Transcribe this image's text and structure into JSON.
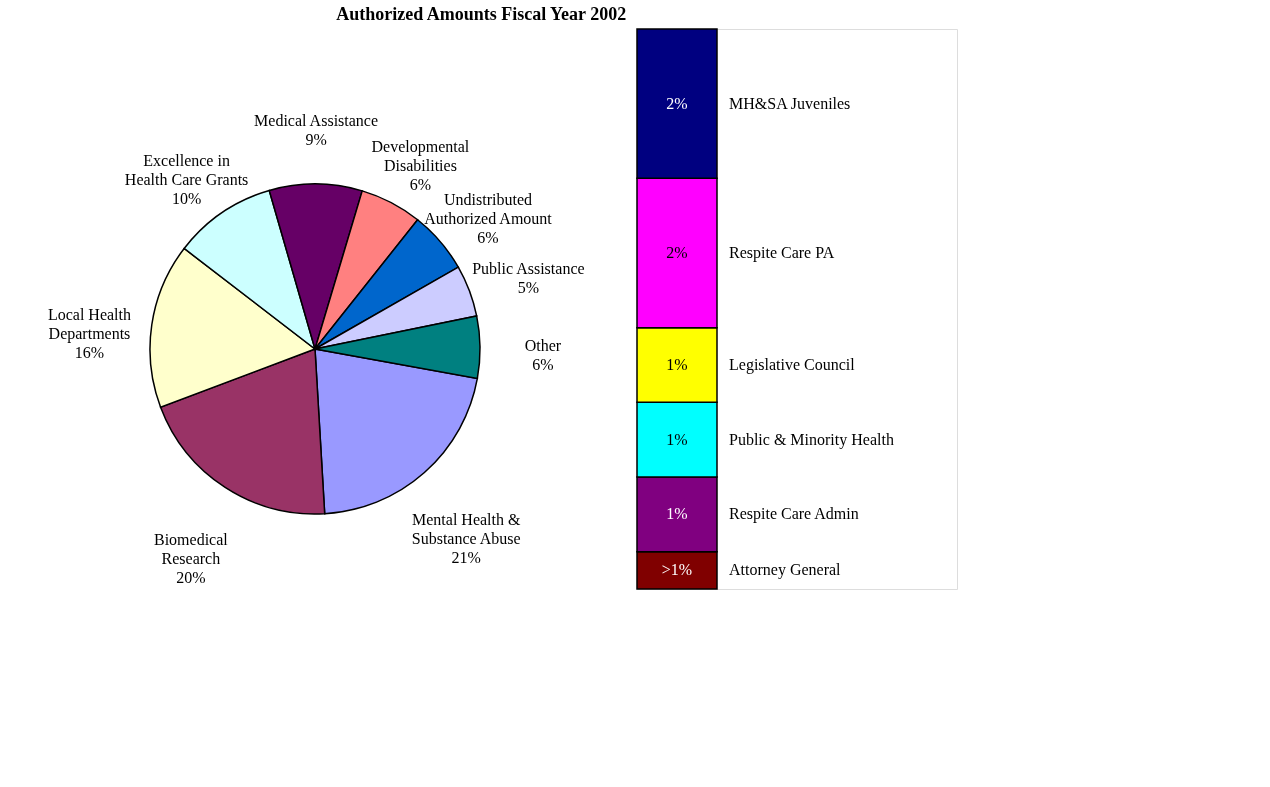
{
  "chart_data": [
    {
      "type": "pie",
      "title": "Authorized Amounts Fiscal Year 2002",
      "categories": [
        "Mental Health & Substance Abuse",
        "Biomedical Research",
        "Local Health Departments",
        "Excellence in Health Care Grants",
        "Medical Assistance",
        "Developmental Disabilities",
        "Undistributed Authorized Amount",
        "Public Assistance",
        "Other"
      ],
      "values": [
        21,
        20,
        16,
        10,
        9,
        6,
        6,
        5,
        6
      ],
      "value_labels": [
        "21%",
        "20%",
        "16%",
        "10%",
        "9%",
        "6%",
        "6%",
        "5%",
        "6%"
      ],
      "colors": [
        "#9999ff",
        "#993366",
        "#ffffcc",
        "#ccffff",
        "#660066",
        "#ff8080",
        "#0066cc",
        "#ccccff",
        "#008080"
      ],
      "legend": false
    },
    {
      "type": "bar",
      "stacked": true,
      "categories": [
        null
      ],
      "legend": false,
      "series": [
        {
          "name": "Attorney General",
          "color": "#800000",
          "values": [
            0.5
          ],
          "value_labels": [
            ">1%"
          ]
        },
        {
          "name": "Respite Care Admin",
          "color": "#800080",
          "values": [
            1
          ],
          "value_labels": [
            "1%"
          ]
        },
        {
          "name": "Public & Minority Health",
          "color": "#00ffff",
          "values": [
            1.0
          ],
          "value_labels": [
            "1%"
          ]
        },
        {
          "name": "Legislative Council",
          "color": "#ffff00",
          "values": [
            1.0
          ],
          "value_labels": [
            "1%"
          ]
        },
        {
          "name": "Respite Care PA",
          "color": "#ff00ff",
          "values": [
            2
          ],
          "value_labels": [
            "2%"
          ]
        },
        {
          "name": "MH&SA Juveniles",
          "color": "#000080",
          "values": [
            2.0
          ],
          "value_labels": [
            "2%"
          ]
        }
      ]
    }
  ]
}
